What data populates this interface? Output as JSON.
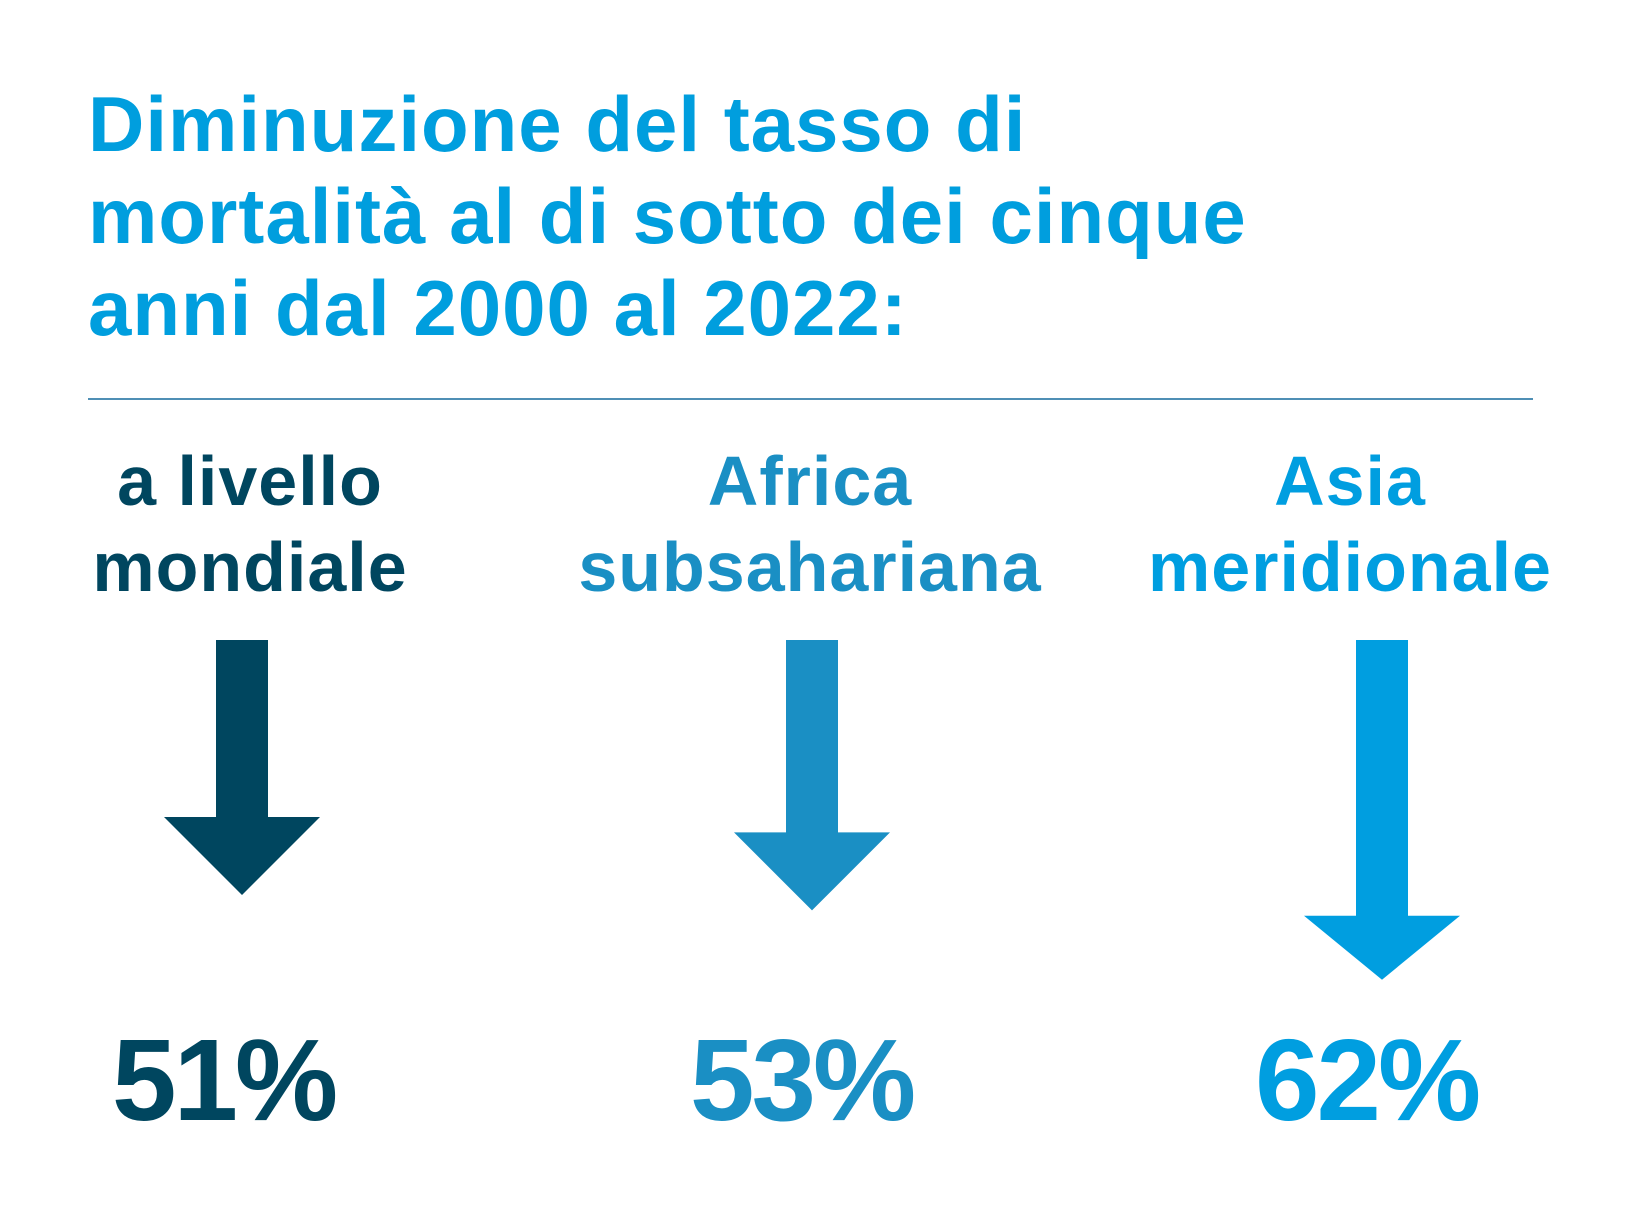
{
  "colors": {
    "title": "#009ede",
    "divider": "#4f8fb5",
    "global": "#00465f",
    "africa": "#1a8fc4",
    "asia": "#009ee0"
  },
  "header": {
    "title_lines": [
      "Diminuzione del tasso di",
      "mortalità al di sotto dei cinque",
      "anni dal 2000 al 2022:"
    ]
  },
  "chart_data": {
    "type": "bar",
    "title": "Diminuzione del tasso di mortalità al di sotto dei cinque anni dal 2000 al 2022:",
    "unit": "%",
    "categories": [
      "a livello mondiale",
      "Africa subsahariana",
      "Asia meridionale"
    ],
    "values": [
      51,
      53,
      62
    ],
    "value_labels": [
      "51%",
      "53%",
      "62%"
    ],
    "items": [
      {
        "label_lines": [
          "a livello",
          "mondiale"
        ],
        "value": 51,
        "value_label": "51%",
        "color": "#00465f",
        "icon": "arrow-down-icon"
      },
      {
        "label_lines": [
          "Africa",
          "subsahariana"
        ],
        "value": 53,
        "value_label": "53%",
        "color": "#1a8fc4",
        "icon": "arrow-down-icon"
      },
      {
        "label_lines": [
          "Asia",
          "meridionale"
        ],
        "value": 62,
        "value_label": "62%",
        "color": "#009ee0",
        "icon": "arrow-down-icon"
      }
    ]
  }
}
